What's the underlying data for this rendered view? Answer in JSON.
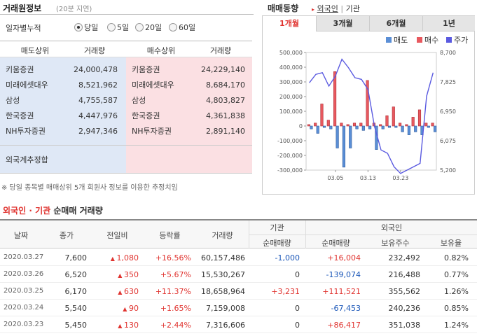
{
  "left": {
    "title": "거래원정보",
    "delay_note": "(20분 지연)",
    "period_label": "일자별누적",
    "periods": [
      "당일",
      "5일",
      "20일",
      "60일"
    ],
    "selected_period": "당일",
    "headers": [
      "매도상위",
      "거래량",
      "매수상위",
      "거래량"
    ],
    "rows": [
      {
        "sell": "키움증권",
        "sell_vol": "24,000,478",
        "buy": "키움증권",
        "buy_vol": "24,229,140"
      },
      {
        "sell": "미래에셋대우",
        "sell_vol": "8,521,962",
        "buy": "미래에셋대우",
        "buy_vol": "8,684,170"
      },
      {
        "sell": "삼성",
        "sell_vol": "4,755,587",
        "buy": "삼성",
        "buy_vol": "4,803,827"
      },
      {
        "sell": "한국증권",
        "sell_vol": "4,447,976",
        "buy": "한국증권",
        "buy_vol": "4,361,838"
      },
      {
        "sell": "NH투자증권",
        "sell_vol": "2,947,346",
        "buy": "NH투자증권",
        "buy_vol": "2,891,140"
      }
    ],
    "foreign_label": "외국계추정합",
    "note": "※ 당일 종목별 매매상위 5개 회원사 정보를 이용한 추정치임"
  },
  "right": {
    "title": "매매동향",
    "tab_foreign": "외국인",
    "tab_sep": "|",
    "tab_inst": "기관",
    "period_tabs": [
      "1개월",
      "3개월",
      "6개월",
      "1년"
    ],
    "active_period": "1개월"
  },
  "chart_data": {
    "type": "bar",
    "legend": [
      "매도",
      "매수",
      "주가"
    ],
    "legend_position": "top-right",
    "colors": {
      "sell": "#5b8fd6",
      "buy": "#e8595f",
      "price": "#5a5ae0"
    },
    "y_left_ticks": [
      "500,000",
      "400,000",
      "300,000",
      "200,000",
      "100,000",
      "0",
      "-100,000",
      "-200,000",
      "-300,000"
    ],
    "y_left_range": [
      -300000,
      500000
    ],
    "y_right_ticks": [
      "8,700",
      "7,825",
      "6,950",
      "6,075",
      "5,200"
    ],
    "y_right_range": [
      5200,
      8700
    ],
    "x_ticks": [
      "03.05",
      "03.13",
      "03.23"
    ],
    "x_tick_index": [
      4,
      9,
      14
    ],
    "days": 20,
    "buy": [
      10000,
      20000,
      150000,
      40000,
      370000,
      20000,
      10000,
      20000,
      20000,
      310000,
      20000,
      10000,
      70000,
      130000,
      20000,
      10000,
      60000,
      110000,
      20000,
      20000
    ],
    "sell": [
      -20000,
      -50000,
      -10000,
      -20000,
      -150000,
      -280000,
      -150000,
      -20000,
      -30000,
      -20000,
      -160000,
      -20000,
      -10000,
      -10000,
      -40000,
      -60000,
      -40000,
      -60000,
      -10000,
      -40000
    ],
    "price": [
      7800,
      8050,
      8100,
      7700,
      8000,
      8500,
      8250,
      7950,
      7900,
      7600,
      6500,
      5800,
      5700,
      5300,
      5100,
      5200,
      5300,
      5400,
      7400,
      8100
    ]
  },
  "bottom": {
    "title_part1": "외국인",
    "title_sep": "·",
    "title_part2": "기관",
    "title_part3": "순매매 거래량",
    "group_inst": "기관",
    "group_foreign": "외국인",
    "headers": [
      "날짜",
      "종가",
      "전일비",
      "등락률",
      "거래량",
      "순매매량",
      "순매매량",
      "보유주수",
      "보유율"
    ],
    "rows": [
      {
        "date": "2020.03.27",
        "close": "7,600",
        "change": "1,080",
        "rate": "+16.56%",
        "volume": "60,157,486",
        "inst": "-1,000",
        "foreign": "+16,004",
        "hold": "232,492",
        "ratio": "0.82%"
      },
      {
        "date": "2020.03.26",
        "close": "6,520",
        "change": "350",
        "rate": "+5.67%",
        "volume": "15,530,267",
        "inst": "0",
        "foreign": "-139,074",
        "hold": "216,488",
        "ratio": "0.77%"
      },
      {
        "date": "2020.03.25",
        "close": "6,170",
        "change": "630",
        "rate": "+11.37%",
        "volume": "18,658,964",
        "inst": "+3,231",
        "foreign": "+111,521",
        "hold": "355,562",
        "ratio": "1.26%"
      },
      {
        "date": "2020.03.24",
        "close": "5,540",
        "change": "90",
        "rate": "+1.65%",
        "volume": "7,159,008",
        "inst": "0",
        "foreign": "-67,453",
        "hold": "240,236",
        "ratio": "0.85%"
      },
      {
        "date": "2020.03.23",
        "close": "5,450",
        "change": "130",
        "rate": "+2.44%",
        "volume": "7,316,606",
        "inst": "0",
        "foreign": "+86,417",
        "hold": "351,038",
        "ratio": "1.24%"
      }
    ]
  }
}
